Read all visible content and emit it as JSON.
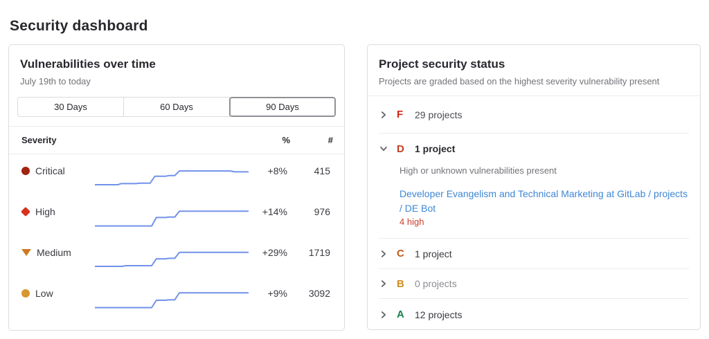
{
  "page": {
    "title": "Security dashboard"
  },
  "vulnerabilities_card": {
    "title": "Vulnerabilities over time",
    "subtitle": "July 19th to today",
    "range_tabs": [
      {
        "label": "30 Days",
        "selected": false
      },
      {
        "label": "60 Days",
        "selected": false
      },
      {
        "label": "90 Days",
        "selected": true
      }
    ],
    "table": {
      "headers": {
        "severity": "Severity",
        "percent": "%",
        "count": "#"
      },
      "rows": [
        {
          "severity": "Critical",
          "icon": "severity-critical-icon",
          "percent": "+8%",
          "count": "415"
        },
        {
          "severity": "High",
          "icon": "severity-high-icon",
          "percent": "+14%",
          "count": "976"
        },
        {
          "severity": "Medium",
          "icon": "severity-medium-icon",
          "percent": "+29%",
          "count": "1719"
        },
        {
          "severity": "Low",
          "icon": "severity-low-icon",
          "percent": "+9%",
          "count": "3092"
        }
      ]
    }
  },
  "project_status_card": {
    "title": "Project security status",
    "subtitle": "Projects are graded based on the highest severity vulnerability present",
    "grades": [
      {
        "letter": "F",
        "count_label": "29 projects",
        "expanded": false
      },
      {
        "letter": "D",
        "count_label": "1 project",
        "expanded": true,
        "description": "High or unknown vulnerabilities present",
        "project_link": "Developer Evangelism and Technical Marketing at GitLab / projects / DE Bot",
        "vulnerability_count": "4 high"
      },
      {
        "letter": "C",
        "count_label": "1 project",
        "expanded": false
      },
      {
        "letter": "B",
        "count_label": "0 projects",
        "expanded": false
      },
      {
        "letter": "A",
        "count_label": "12 projects",
        "expanded": false
      }
    ]
  },
  "colors": {
    "sparkline": "#7291ea",
    "link": "#3e86d4",
    "severity_critical": "#a0240f",
    "severity_high": "#d6331f",
    "severity_medium": "#cc7a1f",
    "severity_low": "#d99530",
    "grade_f": "#d2250f",
    "grade_d": "#c53a21",
    "grade_c": "#bf5b1d",
    "grade_b": "#d18d1f",
    "grade_a": "#17824a",
    "vulnerability_count_red": "#c8402f"
  },
  "chart_data": [
    {
      "type": "line",
      "name": "Critical",
      "trend_percent": "+8%",
      "latest_count": 415,
      "points": [
        [
          0,
          78
        ],
        [
          15,
          78
        ],
        [
          17,
          73
        ],
        [
          27,
          73
        ],
        [
          29,
          71
        ],
        [
          36,
          71
        ],
        [
          39,
          40
        ],
        [
          46,
          40
        ],
        [
          48,
          37
        ],
        [
          52,
          37
        ],
        [
          55,
          16
        ],
        [
          88,
          16
        ],
        [
          91,
          20
        ],
        [
          100,
          20
        ]
      ]
    },
    {
      "type": "line",
      "name": "High",
      "trend_percent": "+14%",
      "latest_count": 976,
      "points": [
        [
          0,
          80
        ],
        [
          37,
          80
        ],
        [
          40,
          42
        ],
        [
          46,
          42
        ],
        [
          48,
          40
        ],
        [
          52,
          40
        ],
        [
          55,
          13
        ],
        [
          100,
          13
        ]
      ]
    },
    {
      "type": "line",
      "name": "Medium",
      "trend_percent": "+29%",
      "latest_count": 1719,
      "points": [
        [
          0,
          78
        ],
        [
          18,
          78
        ],
        [
          20,
          75
        ],
        [
          37,
          75
        ],
        [
          40,
          44
        ],
        [
          46,
          44
        ],
        [
          48,
          42
        ],
        [
          52,
          42
        ],
        [
          55,
          15
        ],
        [
          100,
          15
        ]
      ]
    },
    {
      "type": "line",
      "name": "Low",
      "trend_percent": "+9%",
      "latest_count": 3092,
      "points": [
        [
          0,
          80
        ],
        [
          37,
          80
        ],
        [
          40,
          47
        ],
        [
          46,
          47
        ],
        [
          48,
          45
        ],
        [
          52,
          45
        ],
        [
          55,
          13
        ],
        [
          100,
          13
        ]
      ]
    }
  ]
}
